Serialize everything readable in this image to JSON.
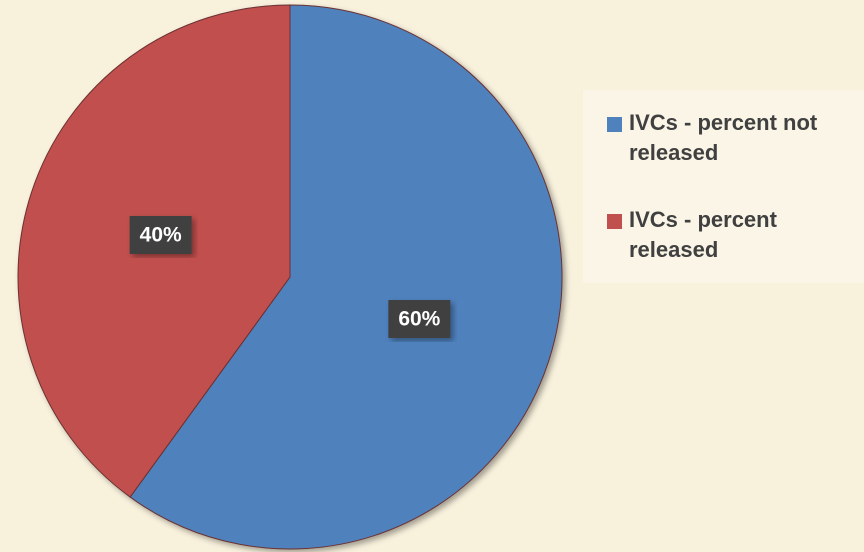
{
  "chart_data": {
    "type": "pie",
    "categories": [
      "IVCs - percent not released",
      "IVCs - percent released"
    ],
    "values": [
      60,
      40
    ],
    "value_labels": [
      "60%",
      "40%"
    ],
    "colors": [
      "#4f81bd",
      "#c0504d"
    ],
    "legend": "right"
  }
}
